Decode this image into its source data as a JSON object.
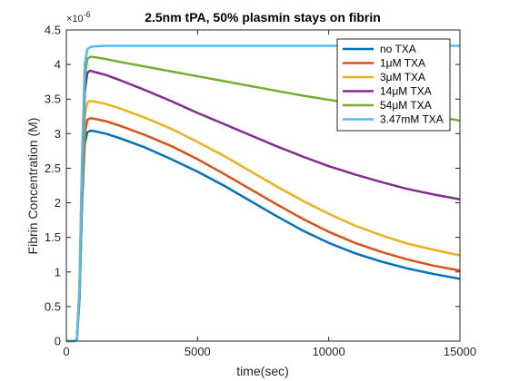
{
  "chart_data": {
    "type": "line",
    "title": "2.5nm tPA, 50% plasmin stays on fibrin",
    "xlabel": "time(sec)",
    "ylabel": "Fibrin Concentration (M)",
    "y_exponent_base": "×10",
    "y_exponent_power": "-6",
    "xlim": [
      0,
      15000
    ],
    "ylim": [
      0,
      4.5
    ],
    "x_ticks": [
      0,
      5000,
      10000,
      15000
    ],
    "x_tick_labels": [
      "0",
      "5000",
      "10000",
      "15000"
    ],
    "y_ticks": [
      0,
      0.5,
      1,
      1.5,
      2,
      2.5,
      3,
      3.5,
      4,
      4.5
    ],
    "y_tick_labels": [
      "0",
      "0.5",
      "1",
      "1.5",
      "2",
      "2.5",
      "3",
      "3.5",
      "4",
      "4.5"
    ],
    "grid": false,
    "legend_position": "top-right",
    "series": [
      {
        "name": "no TXA",
        "color": "#0072BD",
        "x": [
          0,
          300,
          400,
          500,
          600,
          700,
          800,
          900,
          1000,
          1500,
          2000,
          3000,
          4000,
          5000,
          6000,
          7000,
          8000,
          9000,
          10000,
          11000,
          12000,
          13000,
          14000,
          15000
        ],
        "y": [
          0,
          0,
          0.02,
          0.6,
          2.0,
          2.85,
          3.02,
          3.04,
          3.04,
          3.0,
          2.94,
          2.8,
          2.63,
          2.45,
          2.25,
          2.03,
          1.81,
          1.6,
          1.42,
          1.27,
          1.15,
          1.05,
          0.97,
          0.9
        ]
      },
      {
        "name": "1μM TXA",
        "color": "#D95319",
        "x": [
          0,
          300,
          400,
          500,
          600,
          700,
          800,
          900,
          1000,
          1500,
          2000,
          3000,
          4000,
          5000,
          6000,
          7000,
          8000,
          9000,
          10000,
          11000,
          12000,
          13000,
          14000,
          15000
        ],
        "y": [
          0,
          0,
          0.02,
          0.62,
          2.1,
          3.0,
          3.2,
          3.22,
          3.22,
          3.18,
          3.12,
          2.98,
          2.82,
          2.63,
          2.42,
          2.2,
          1.98,
          1.77,
          1.58,
          1.42,
          1.29,
          1.18,
          1.09,
          1.02
        ]
      },
      {
        "name": "3μM TXA",
        "color": "#EDB120",
        "x": [
          0,
          300,
          400,
          500,
          600,
          700,
          800,
          900,
          1000,
          1500,
          2000,
          3000,
          4000,
          5000,
          6000,
          7000,
          8000,
          9000,
          10000,
          11000,
          12000,
          13000,
          14000,
          15000
        ],
        "y": [
          0,
          0,
          0.02,
          0.65,
          2.2,
          3.25,
          3.45,
          3.47,
          3.47,
          3.43,
          3.37,
          3.23,
          3.07,
          2.88,
          2.68,
          2.46,
          2.24,
          2.03,
          1.84,
          1.67,
          1.53,
          1.41,
          1.32,
          1.24
        ]
      },
      {
        "name": "14μM TXA",
        "color": "#7E2F8E",
        "x": [
          0,
          300,
          400,
          500,
          600,
          700,
          800,
          900,
          1000,
          1500,
          2000,
          3000,
          4000,
          5000,
          6000,
          7000,
          8000,
          9000,
          10000,
          11000,
          12000,
          13000,
          14000,
          15000
        ],
        "y": [
          0,
          0,
          0.02,
          0.7,
          2.4,
          3.6,
          3.88,
          3.91,
          3.9,
          3.85,
          3.78,
          3.63,
          3.47,
          3.3,
          3.14,
          2.98,
          2.82,
          2.67,
          2.53,
          2.41,
          2.3,
          2.2,
          2.12,
          2.05
        ]
      },
      {
        "name": "54μM TXA",
        "color": "#77AC30",
        "x": [
          0,
          300,
          400,
          500,
          600,
          700,
          800,
          900,
          1000,
          1500,
          2000,
          3000,
          4000,
          5000,
          6000,
          7000,
          8000,
          9000,
          10000,
          11000,
          12000,
          13000,
          14000,
          15000
        ],
        "y": [
          0,
          0,
          0.02,
          0.75,
          2.55,
          3.8,
          4.08,
          4.11,
          4.11,
          4.08,
          4.04,
          3.97,
          3.9,
          3.83,
          3.76,
          3.69,
          3.62,
          3.55,
          3.49,
          3.43,
          3.37,
          3.31,
          3.25,
          3.19
        ]
      },
      {
        "name": "3.47mM TXA",
        "color": "#4DBEEE",
        "x": [
          0,
          300,
          400,
          500,
          600,
          700,
          800,
          900,
          1000,
          1500,
          2000,
          3000,
          4000,
          5000,
          6000,
          7000,
          8000,
          9000,
          10000,
          11000,
          12000,
          13000,
          14000,
          15000
        ],
        "y": [
          0,
          0,
          0.02,
          0.8,
          2.7,
          4.0,
          4.22,
          4.25,
          4.26,
          4.27,
          4.27,
          4.27,
          4.27,
          4.27,
          4.27,
          4.27,
          4.27,
          4.27,
          4.27,
          4.27,
          4.27,
          4.27,
          4.27,
          4.27
        ]
      }
    ]
  }
}
